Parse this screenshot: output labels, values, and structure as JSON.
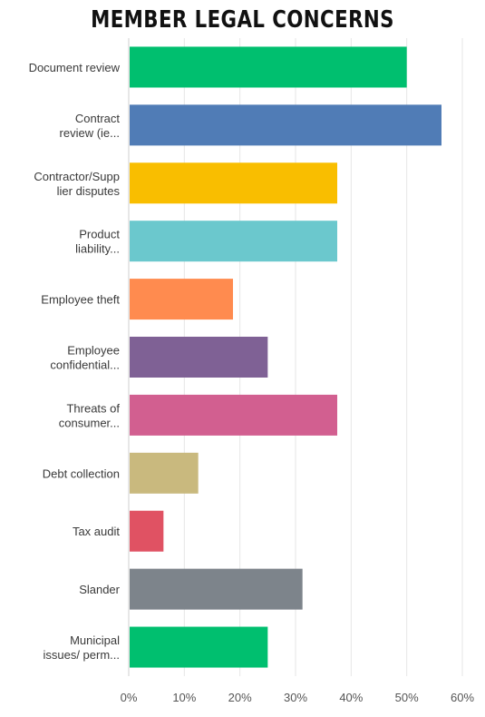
{
  "chart_data": {
    "type": "bar",
    "orientation": "horizontal",
    "title": "MEMBER LEGAL CONCERNS",
    "categories": [
      [
        "Document review"
      ],
      [
        "Contract",
        "review (ie..."
      ],
      [
        "Contractor/Supp",
        "lier disputes"
      ],
      [
        "Product",
        "liability..."
      ],
      [
        "Employee theft"
      ],
      [
        "Employee",
        "confidential..."
      ],
      [
        "Threats of",
        "consumer..."
      ],
      [
        "Debt collection"
      ],
      [
        "Tax audit"
      ],
      [
        "Slander"
      ],
      [
        "Municipal",
        "issues/ perm..."
      ]
    ],
    "values": [
      50,
      56.25,
      37.5,
      37.5,
      18.75,
      25,
      37.5,
      12.5,
      6.25,
      31.25,
      25
    ],
    "colors": [
      "#00bf6f",
      "#507cb6",
      "#f9be00",
      "#6bc8cd",
      "#ff8b4f",
      "#7f6195",
      "#d25f90",
      "#c9b97e",
      "#e05263",
      "#7d848b",
      "#00bf6f"
    ],
    "xlim": [
      0,
      60
    ],
    "ticks": [
      "0%",
      "10%",
      "20%",
      "30%",
      "40%",
      "50%",
      "60%"
    ],
    "grid": true,
    "legend": "none"
  }
}
